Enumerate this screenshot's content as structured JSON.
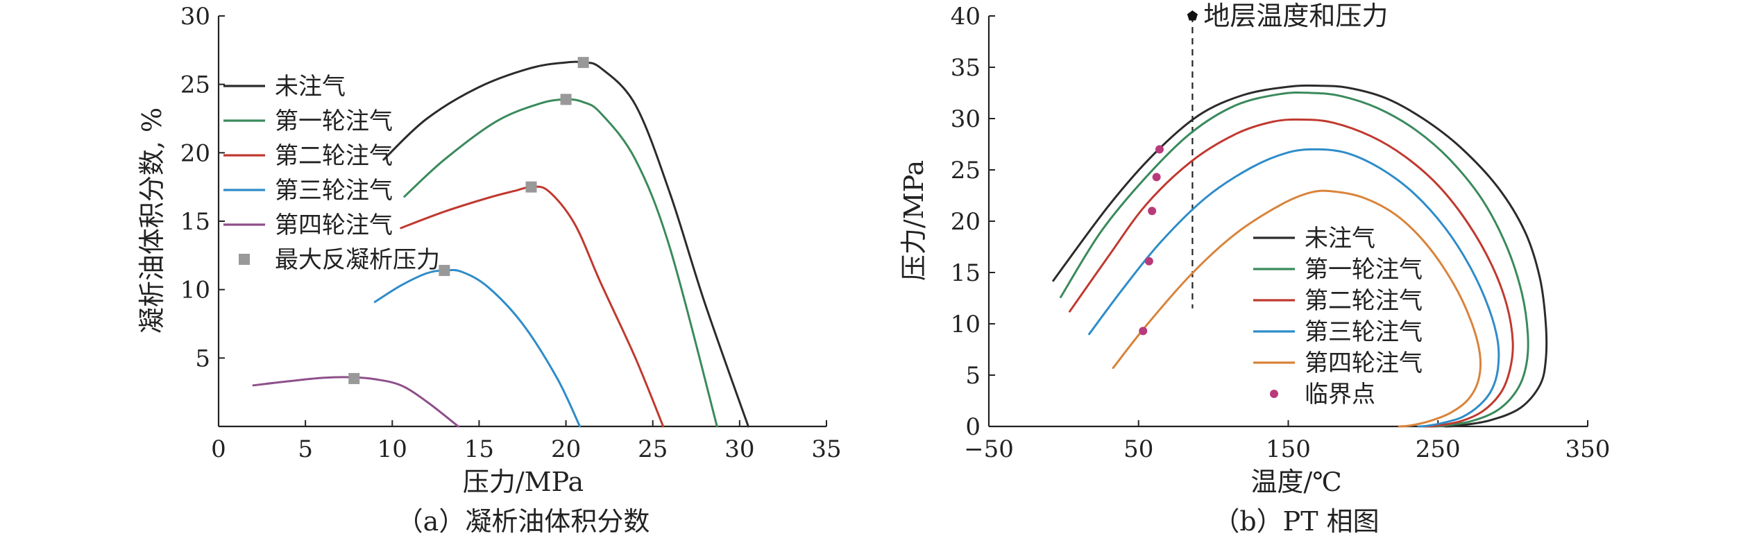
{
  "chart_data": [
    {
      "type": "line",
      "caption": "（a）凝析油体积分数",
      "xlabel": "压力/MPa",
      "ylabel": "凝析油体积分数, %",
      "xlim": [
        0,
        35
      ],
      "ylim": [
        0,
        30
      ],
      "xticks": [
        0,
        5,
        10,
        15,
        20,
        25,
        30,
        35
      ],
      "yticks": [
        5,
        10,
        15,
        20,
        25,
        30
      ],
      "legend_position": "top-left",
      "series": [
        {
          "name": "未注气",
          "color": "#2b2b2b",
          "x": [
            9.5,
            12,
            15,
            18,
            20,
            21,
            22,
            24,
            26,
            28,
            30.5
          ],
          "y": [
            19.5,
            22.5,
            24.8,
            26.2,
            26.6,
            26.6,
            26.2,
            23.5,
            17,
            9,
            0
          ]
        },
        {
          "name": "第一轮注气",
          "color": "#3a8a5c",
          "x": [
            10.7,
            13,
            16,
            18.5,
            20,
            21,
            22,
            24,
            26,
            28.7
          ],
          "y": [
            16.8,
            19.5,
            22.3,
            23.6,
            23.9,
            23.7,
            22.9,
            19.5,
            13,
            0
          ]
        },
        {
          "name": "第二轮注气",
          "color": "#c0392f",
          "x": [
            10.5,
            13,
            15.5,
            17,
            18,
            19,
            20.5,
            22,
            24,
            25.6
          ],
          "y": [
            14.5,
            15.7,
            16.7,
            17.2,
            17.5,
            17.2,
            14.8,
            10.5,
            5,
            0
          ]
        },
        {
          "name": "第三轮注气",
          "color": "#2e8cc8",
          "x": [
            9,
            10.5,
            12,
            13,
            14,
            15.5,
            17.5,
            19.5,
            20.8
          ],
          "y": [
            9.1,
            10.3,
            11.2,
            11.4,
            11.3,
            10.2,
            7.5,
            3.5,
            0
          ]
        },
        {
          "name": "第四轮注气",
          "color": "#8e4f8a",
          "x": [
            2,
            4,
            6,
            7.5,
            9,
            10.5,
            12,
            13.8
          ],
          "y": [
            3.0,
            3.3,
            3.55,
            3.6,
            3.45,
            3.0,
            1.8,
            0
          ]
        }
      ],
      "markers": {
        "name": "最大反凝析压力",
        "color": "#999999",
        "x": [
          21,
          20,
          18,
          13,
          7.8
        ],
        "y": [
          26.6,
          23.9,
          17.5,
          11.4,
          3.5
        ]
      }
    },
    {
      "type": "line",
      "caption": "（b）PT 相图",
      "xlabel": "温度/℃",
      "ylabel": "压力/MPa",
      "xlim": [
        -50,
        350
      ],
      "ylim": [
        0,
        40
      ],
      "xticks": [
        -50,
        50,
        150,
        250,
        350
      ],
      "xtick_labels": [
        "−50",
        "50",
        "150",
        "250",
        "350"
      ],
      "yticks": [
        0,
        5,
        10,
        15,
        20,
        25,
        30,
        35,
        40
      ],
      "legend_position": "center-right",
      "annotation": {
        "text": "地层温度和压力",
        "x": 86,
        "y": 40,
        "line_from_y": 11.5
      },
      "series": [
        {
          "name": "未注气",
          "color": "#2b2b2b",
          "x": [
            -7,
            30,
            60,
            90,
            120,
            150,
            170,
            190,
            215,
            240,
            265,
            290,
            308,
            318,
            322,
            322,
            318,
            305,
            285,
            265,
            255
          ],
          "y": [
            14.2,
            21.5,
            26.5,
            30.3,
            32.3,
            33.1,
            33.2,
            33,
            32,
            30,
            27.2,
            23.3,
            19,
            14.5,
            10,
            6.5,
            4,
            1.8,
            0.6,
            0.1,
            0
          ]
        },
        {
          "name": "第一轮注气",
          "color": "#3a8a5c",
          "x": [
            -2,
            25,
            55,
            85,
            115,
            145,
            165,
            185,
            210,
            235,
            258,
            280,
            296,
            306,
            310,
            309,
            303,
            290,
            272,
            252,
            245
          ],
          "y": [
            12.6,
            19,
            24.3,
            28.6,
            31.3,
            32.4,
            32.5,
            32.2,
            31,
            28.9,
            26,
            22,
            17.5,
            13,
            9,
            6,
            3.6,
            1.6,
            0.5,
            0.05,
            0
          ]
        },
        {
          "name": "第二轮注气",
          "color": "#c0392f",
          "x": [
            4,
            30,
            55,
            85,
            115,
            140,
            160,
            180,
            205,
            228,
            250,
            270,
            286,
            296,
            300,
            298,
            292,
            280,
            265,
            248,
            240
          ],
          "y": [
            11.2,
            16.6,
            21.6,
            25.8,
            28.5,
            29.7,
            29.9,
            29.6,
            28.3,
            26.3,
            23.5,
            19.8,
            15.7,
            11.8,
            8.2,
            5.5,
            3.3,
            1.5,
            0.5,
            0.05,
            0
          ]
        },
        {
          "name": "第三轮注气",
          "color": "#2e8cc8",
          "x": [
            17,
            40,
            65,
            95,
            125,
            150,
            170,
            190,
            212,
            234,
            255,
            272,
            284,
            290,
            290,
            286,
            278,
            266,
            252,
            242,
            237
          ],
          "y": [
            9,
            13.5,
            18,
            22.3,
            25.2,
            26.7,
            27,
            26.6,
            25.1,
            22.7,
            19.3,
            15.4,
            11.5,
            8.2,
            5.6,
            3.6,
            2.1,
            0.9,
            0.3,
            0.05,
            0
          ]
        },
        {
          "name": "第四轮注气",
          "color": "#d9833a",
          "x": [
            33,
            55,
            85,
            115,
            145,
            165,
            180,
            200,
            222,
            242,
            260,
            272,
            278,
            277,
            270,
            258,
            244,
            232,
            224
          ],
          "y": [
            5.7,
            9.8,
            14.8,
            18.8,
            21.6,
            22.8,
            22.9,
            22.3,
            20.6,
            17.8,
            14,
            10.3,
            7,
            4.5,
            2.6,
            1.3,
            0.5,
            0.1,
            0
          ]
        }
      ],
      "markers": {
        "name": "临界点",
        "color": "#b83a7a",
        "x": [
          64,
          62,
          59,
          57,
          53
        ],
        "y": [
          27,
          24.3,
          21,
          16.1,
          9.3
        ]
      }
    }
  ]
}
